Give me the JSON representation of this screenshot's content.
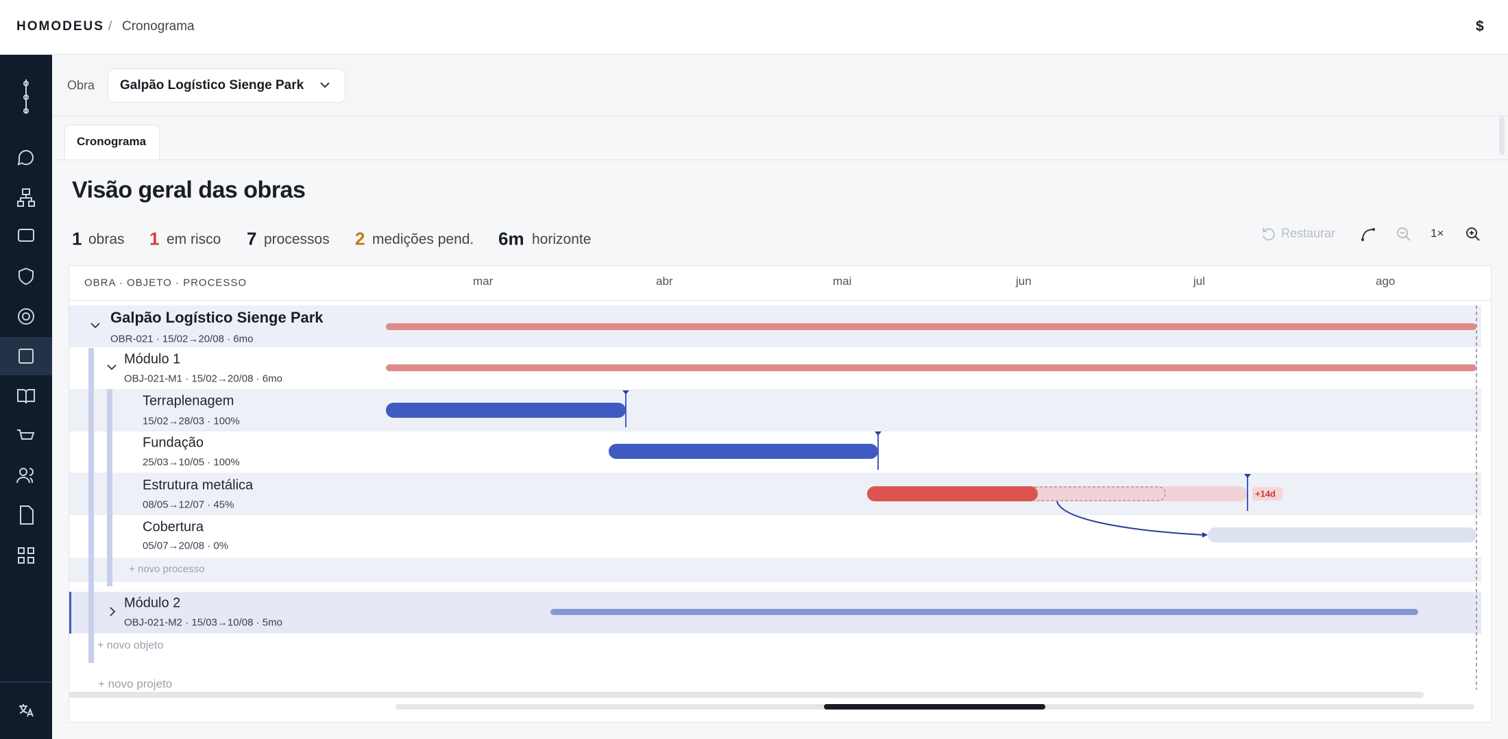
{
  "header": {
    "brand": "HOMODEUS",
    "separator": "/",
    "page": "Cronograma",
    "currency": "$"
  },
  "project_bar": {
    "label": "Obra",
    "selected": "Galpão Logístico Sienge Park"
  },
  "tabs": [
    "Cronograma"
  ],
  "title": "Visão geral das obras",
  "stats": [
    {
      "value": 1,
      "label": "obras"
    },
    {
      "value": 1,
      "label": "em risco"
    },
    {
      "value": 7,
      "label": "processos"
    },
    {
      "value": 2,
      "label": "medições pend."
    },
    {
      "value": "6m",
      "label": "horizonte"
    }
  ],
  "toolbar": {
    "restore": "Restaurar",
    "zoom": "1×"
  },
  "gantt": {
    "column_header": "OBRA · OBJETO · PROCESSO",
    "months": [
      "mar",
      "abr",
      "mai",
      "jun",
      "jul",
      "ago"
    ],
    "rows": [
      {
        "name": "Galpão Logístico Sienge Park",
        "meta": "OBR-021 · 15/02→20/08 · 6mo"
      },
      {
        "name": "Módulo 1",
        "meta": "OBJ-021-M1 · 15/02→20/08 · 6mo"
      },
      {
        "name": "Terraplenagem",
        "meta": "15/02→28/03 · 100%"
      },
      {
        "name": "Fundação",
        "meta": "25/03→10/05 · 100%"
      },
      {
        "name": "Estrutura metálica",
        "meta": "08/05→12/07 · 45%"
      },
      {
        "name": "Cobertura",
        "meta": "05/07→20/08 · 0%"
      },
      {
        "name": "Módulo 2",
        "meta": "OBJ-021-M2 · 15/03→10/08 · 5mo"
      }
    ],
    "badge": "+14d",
    "add_process": "+ novo processo",
    "add_object": "+ novo objeto",
    "add_project": "+ novo projeto"
  }
}
